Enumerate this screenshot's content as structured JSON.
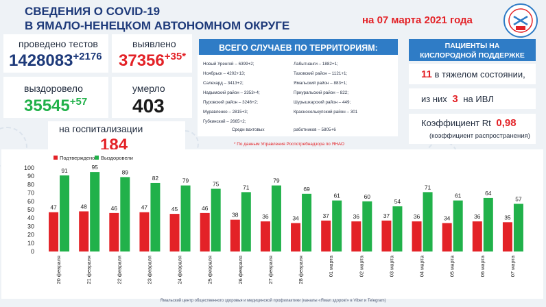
{
  "header": {
    "title_line1": "СВЕДЕНИЯ О COVID-19",
    "title_line2": "В ЯМАЛО-НЕНЕЦКОМ АВТОНОМНОМ ОКРУГЕ",
    "date": "на 07 марта 2021 года"
  },
  "stats": {
    "tests_label": "проведено тестов",
    "tests_value": "1428083",
    "tests_delta": "+2176",
    "detected_label": "выявлено",
    "detected_value": "37356",
    "detected_delta": "+35*",
    "recovered_label": "выздоровело",
    "recovered_value": "35545",
    "recovered_delta": "+57",
    "died_label": "умерло",
    "died_value": "403",
    "hosp_label": "на госпитализации",
    "hosp_value": "184"
  },
  "territories": {
    "header": "ВСЕГО СЛУЧАЕВ ПО ТЕРРИТОРИЯМ:",
    "left": [
      "Новый Уренгой – 6399+2;",
      "Ноябрьск – 4202+13;",
      "Салехард – 3413+2;",
      "Надымский район – 3353+4;",
      "Пуровский район – 3246+2;",
      "Муравленко – 2815+3;",
      "Губкинский – 2665+2;"
    ],
    "right": [
      "Лабытнанги – 1882+1;",
      "Тазовский район – 1121+1;",
      "Ямальский район – 883+1;",
      "Приуральский район – 822;",
      "Шурышкарский район – 449;",
      "Красноселькупский район – 301"
    ],
    "shift_left": "Среди вахтовых",
    "shift_right": "работников – 5805+6",
    "note": "* По данным Управления Роспотребнадзора по ЯНАО"
  },
  "oxygen": {
    "header_line1": "ПАЦИЕНТЫ НА",
    "header_line2": "КИСЛОРОДНОЙ ПОДДЕРЖКЕ",
    "severe_value": "11",
    "severe_text": "в тяжелом состоянии,",
    "ivl_prefix": "из них",
    "ivl_value": "3",
    "ivl_suffix": "на ИВЛ",
    "rt_label": "Коэффициент Rt",
    "rt_value": "0,98",
    "rt_note": "(коэффициент распространения)"
  },
  "footer": "Ямальский центр общественного здоровья и медицинской профилактики (каналы «Ямал здоров!» в Viber и Telegram)",
  "colors": {
    "confirmed": "#e32227",
    "recovered": "#21b14a",
    "accent_blue": "#2f7cc6",
    "title_blue": "#1e3a7a"
  },
  "chart_data": {
    "type": "bar",
    "categories": [
      "20 февраля",
      "21 февраля",
      "22 февраля",
      "23 февраля",
      "24 февраля",
      "25 февраля",
      "26 февраля",
      "27 февраля",
      "28 февраля",
      "01 марта",
      "02 марта",
      "03 марта",
      "04 марта",
      "05 марта",
      "06 марта",
      "07 марта"
    ],
    "series": [
      {
        "name": "Подтверждено",
        "values": [
          47,
          48,
          46,
          47,
          45,
          46,
          38,
          36,
          34,
          37,
          36,
          37,
          36,
          34,
          36,
          35
        ]
      },
      {
        "name": "Выздоровели",
        "values": [
          91,
          95,
          89,
          82,
          79,
          75,
          71,
          79,
          69,
          61,
          60,
          54,
          71,
          61,
          64,
          57
        ]
      }
    ],
    "yticks": [
      "100",
      "90",
      "80",
      "70",
      "60",
      "50",
      "40",
      "30",
      "20",
      "10",
      "0"
    ],
    "ylim": [
      0,
      100
    ],
    "legend_position": "top-left",
    "grid": false
  }
}
